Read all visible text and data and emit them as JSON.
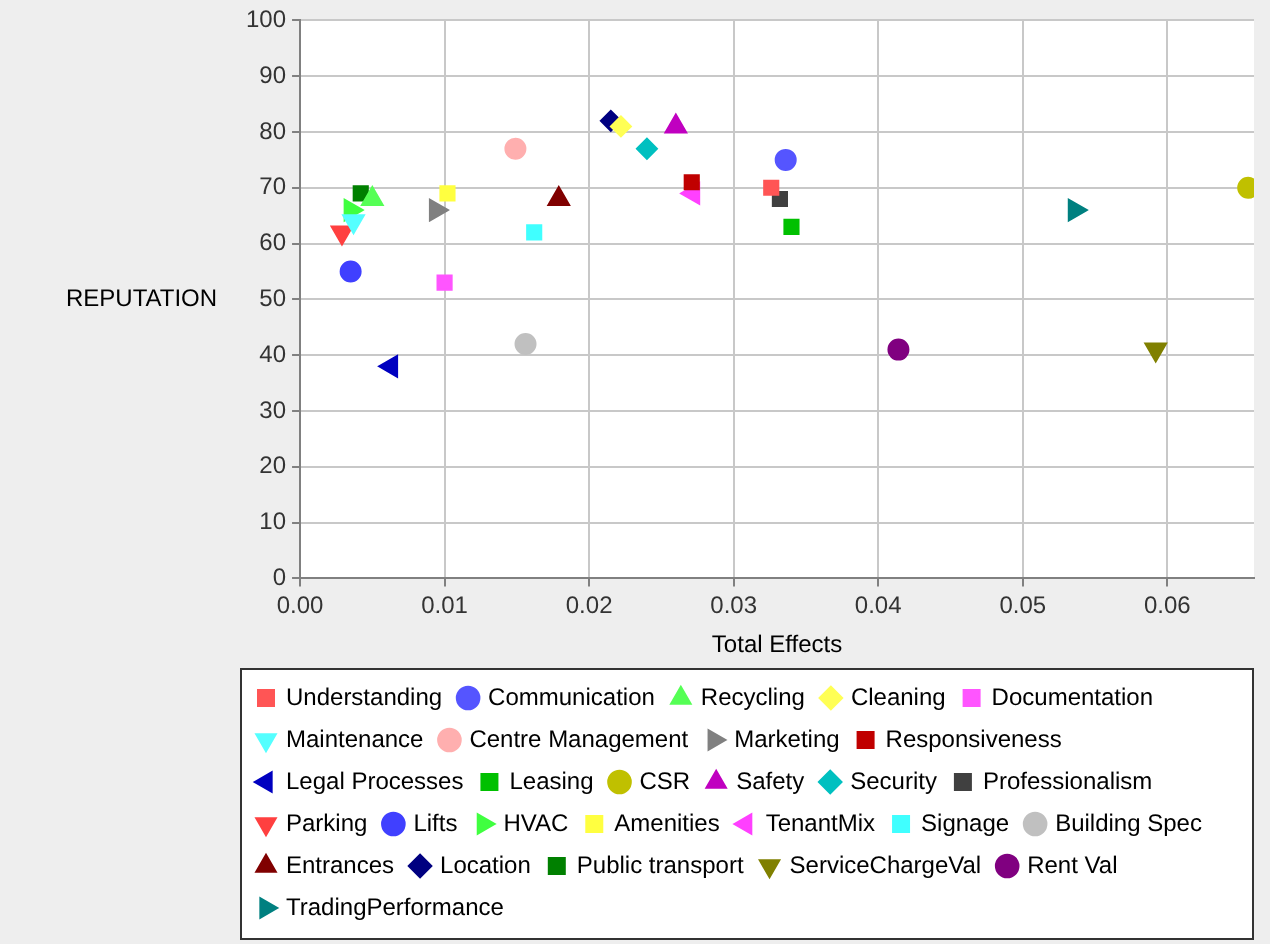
{
  "chart_data": {
    "type": "scatter",
    "xlabel": "Total Effects",
    "ylabel": "REPUTATION",
    "xlim": [
      0,
      0.066
    ],
    "xticks": [
      {
        "value": 0,
        "label": "0.00"
      },
      0.01,
      0.02,
      0.03,
      0.04,
      0.05,
      0.06
    ],
    "ylim": [
      0,
      100
    ],
    "yticks": [
      0,
      10,
      20,
      30,
      40,
      50,
      60,
      70,
      80,
      90,
      100
    ],
    "grid": true,
    "legend": "bottom",
    "series": [
      {
        "name": "Understanding",
        "color": "#ff5555",
        "marker": "square",
        "x": [
          0.0326
        ],
        "values": [
          70
        ]
      },
      {
        "name": "Communication",
        "color": "#5555ff",
        "marker": "circle",
        "x": [
          0.0336
        ],
        "values": [
          75
        ]
      },
      {
        "name": "Recycling",
        "color": "#55ff55",
        "marker": "triangle",
        "x": [
          0.005
        ],
        "values": [
          68
        ]
      },
      {
        "name": "Cleaning",
        "color": "#ffff55",
        "marker": "diamond",
        "x": [
          0.0222
        ],
        "values": [
          81
        ]
      },
      {
        "name": "Documentation",
        "color": "#ff55ff",
        "marker": "square",
        "x": [
          0.01
        ],
        "values": [
          53
        ]
      },
      {
        "name": "Maintenance",
        "color": "#55ffff",
        "marker": "triangle-down",
        "x": [
          0.0037
        ],
        "values": [
          64
        ]
      },
      {
        "name": "Centre Management",
        "color": "#ffafaf",
        "marker": "circle",
        "x": [
          0.0149
        ],
        "values": [
          77
        ]
      },
      {
        "name": "Marketing",
        "color": "#808080",
        "marker": "triangle-right",
        "x": [
          0.0094
        ],
        "values": [
          66
        ]
      },
      {
        "name": "Responsiveness",
        "color": "#c00000",
        "marker": "square",
        "x": [
          0.0271
        ],
        "values": [
          71
        ]
      },
      {
        "name": "Legal Processes",
        "color": "#0000c0",
        "marker": "triangle-left",
        "x": [
          0.0063
        ],
        "values": [
          38
        ]
      },
      {
        "name": "Leasing",
        "color": "#00c000",
        "marker": "square",
        "x": [
          0.034
        ],
        "values": [
          63
        ]
      },
      {
        "name": "CSR",
        "color": "#c0c000",
        "marker": "circle",
        "x": [
          0.0656
        ],
        "values": [
          70
        ]
      },
      {
        "name": "Safety",
        "color": "#c000c0",
        "marker": "triangle",
        "x": [
          0.026
        ],
        "values": [
          81
        ]
      },
      {
        "name": "Security",
        "color": "#00c0c0",
        "marker": "diamond",
        "x": [
          0.024
        ],
        "values": [
          77
        ]
      },
      {
        "name": "Professionalism",
        "color": "#404040",
        "marker": "square",
        "x": [
          0.0332
        ],
        "values": [
          68
        ]
      },
      {
        "name": "Parking",
        "color": "#ff4040",
        "marker": "triangle-down",
        "x": [
          0.0029
        ],
        "values": [
          62
        ]
      },
      {
        "name": "Lifts",
        "color": "#4040ff",
        "marker": "circle",
        "x": [
          0.0035
        ],
        "values": [
          55
        ]
      },
      {
        "name": "HVAC",
        "color": "#40ff40",
        "marker": "triangle-right",
        "x": [
          0.0035
        ],
        "values": [
          66
        ]
      },
      {
        "name": "Amenities",
        "color": "#ffff40",
        "marker": "square",
        "x": [
          0.0102
        ],
        "values": [
          69
        ]
      },
      {
        "name": "TenantMix",
        "color": "#ff40ff",
        "marker": "triangle-left",
        "x": [
          0.0272
        ],
        "values": [
          69
        ]
      },
      {
        "name": "Signage",
        "color": "#40ffff",
        "marker": "square",
        "x": [
          0.0162
        ],
        "values": [
          62
        ]
      },
      {
        "name": "Building Spec",
        "color": "#c0c0c0",
        "marker": "circle",
        "x": [
          0.0156
        ],
        "values": [
          42
        ]
      },
      {
        "name": "Entrances",
        "color": "#800000",
        "marker": "triangle",
        "x": [
          0.0179
        ],
        "values": [
          68
        ]
      },
      {
        "name": "Location",
        "color": "#000080",
        "marker": "diamond",
        "x": [
          0.0215
        ],
        "values": [
          82
        ]
      },
      {
        "name": "Public transport",
        "color": "#008000",
        "marker": "square",
        "x": [
          0.0042
        ],
        "values": [
          69
        ]
      },
      {
        "name": "ServiceChargeVal",
        "color": "#808000",
        "marker": "triangle-down",
        "x": [
          0.0592
        ],
        "values": [
          41
        ]
      },
      {
        "name": "Rent Val",
        "color": "#800080",
        "marker": "circle",
        "x": [
          0.0414
        ],
        "values": [
          41
        ]
      },
      {
        "name": "TradingPerformance",
        "color": "#008080",
        "marker": "triangle-right",
        "x": [
          0.0536
        ],
        "values": [
          66
        ]
      }
    ]
  }
}
